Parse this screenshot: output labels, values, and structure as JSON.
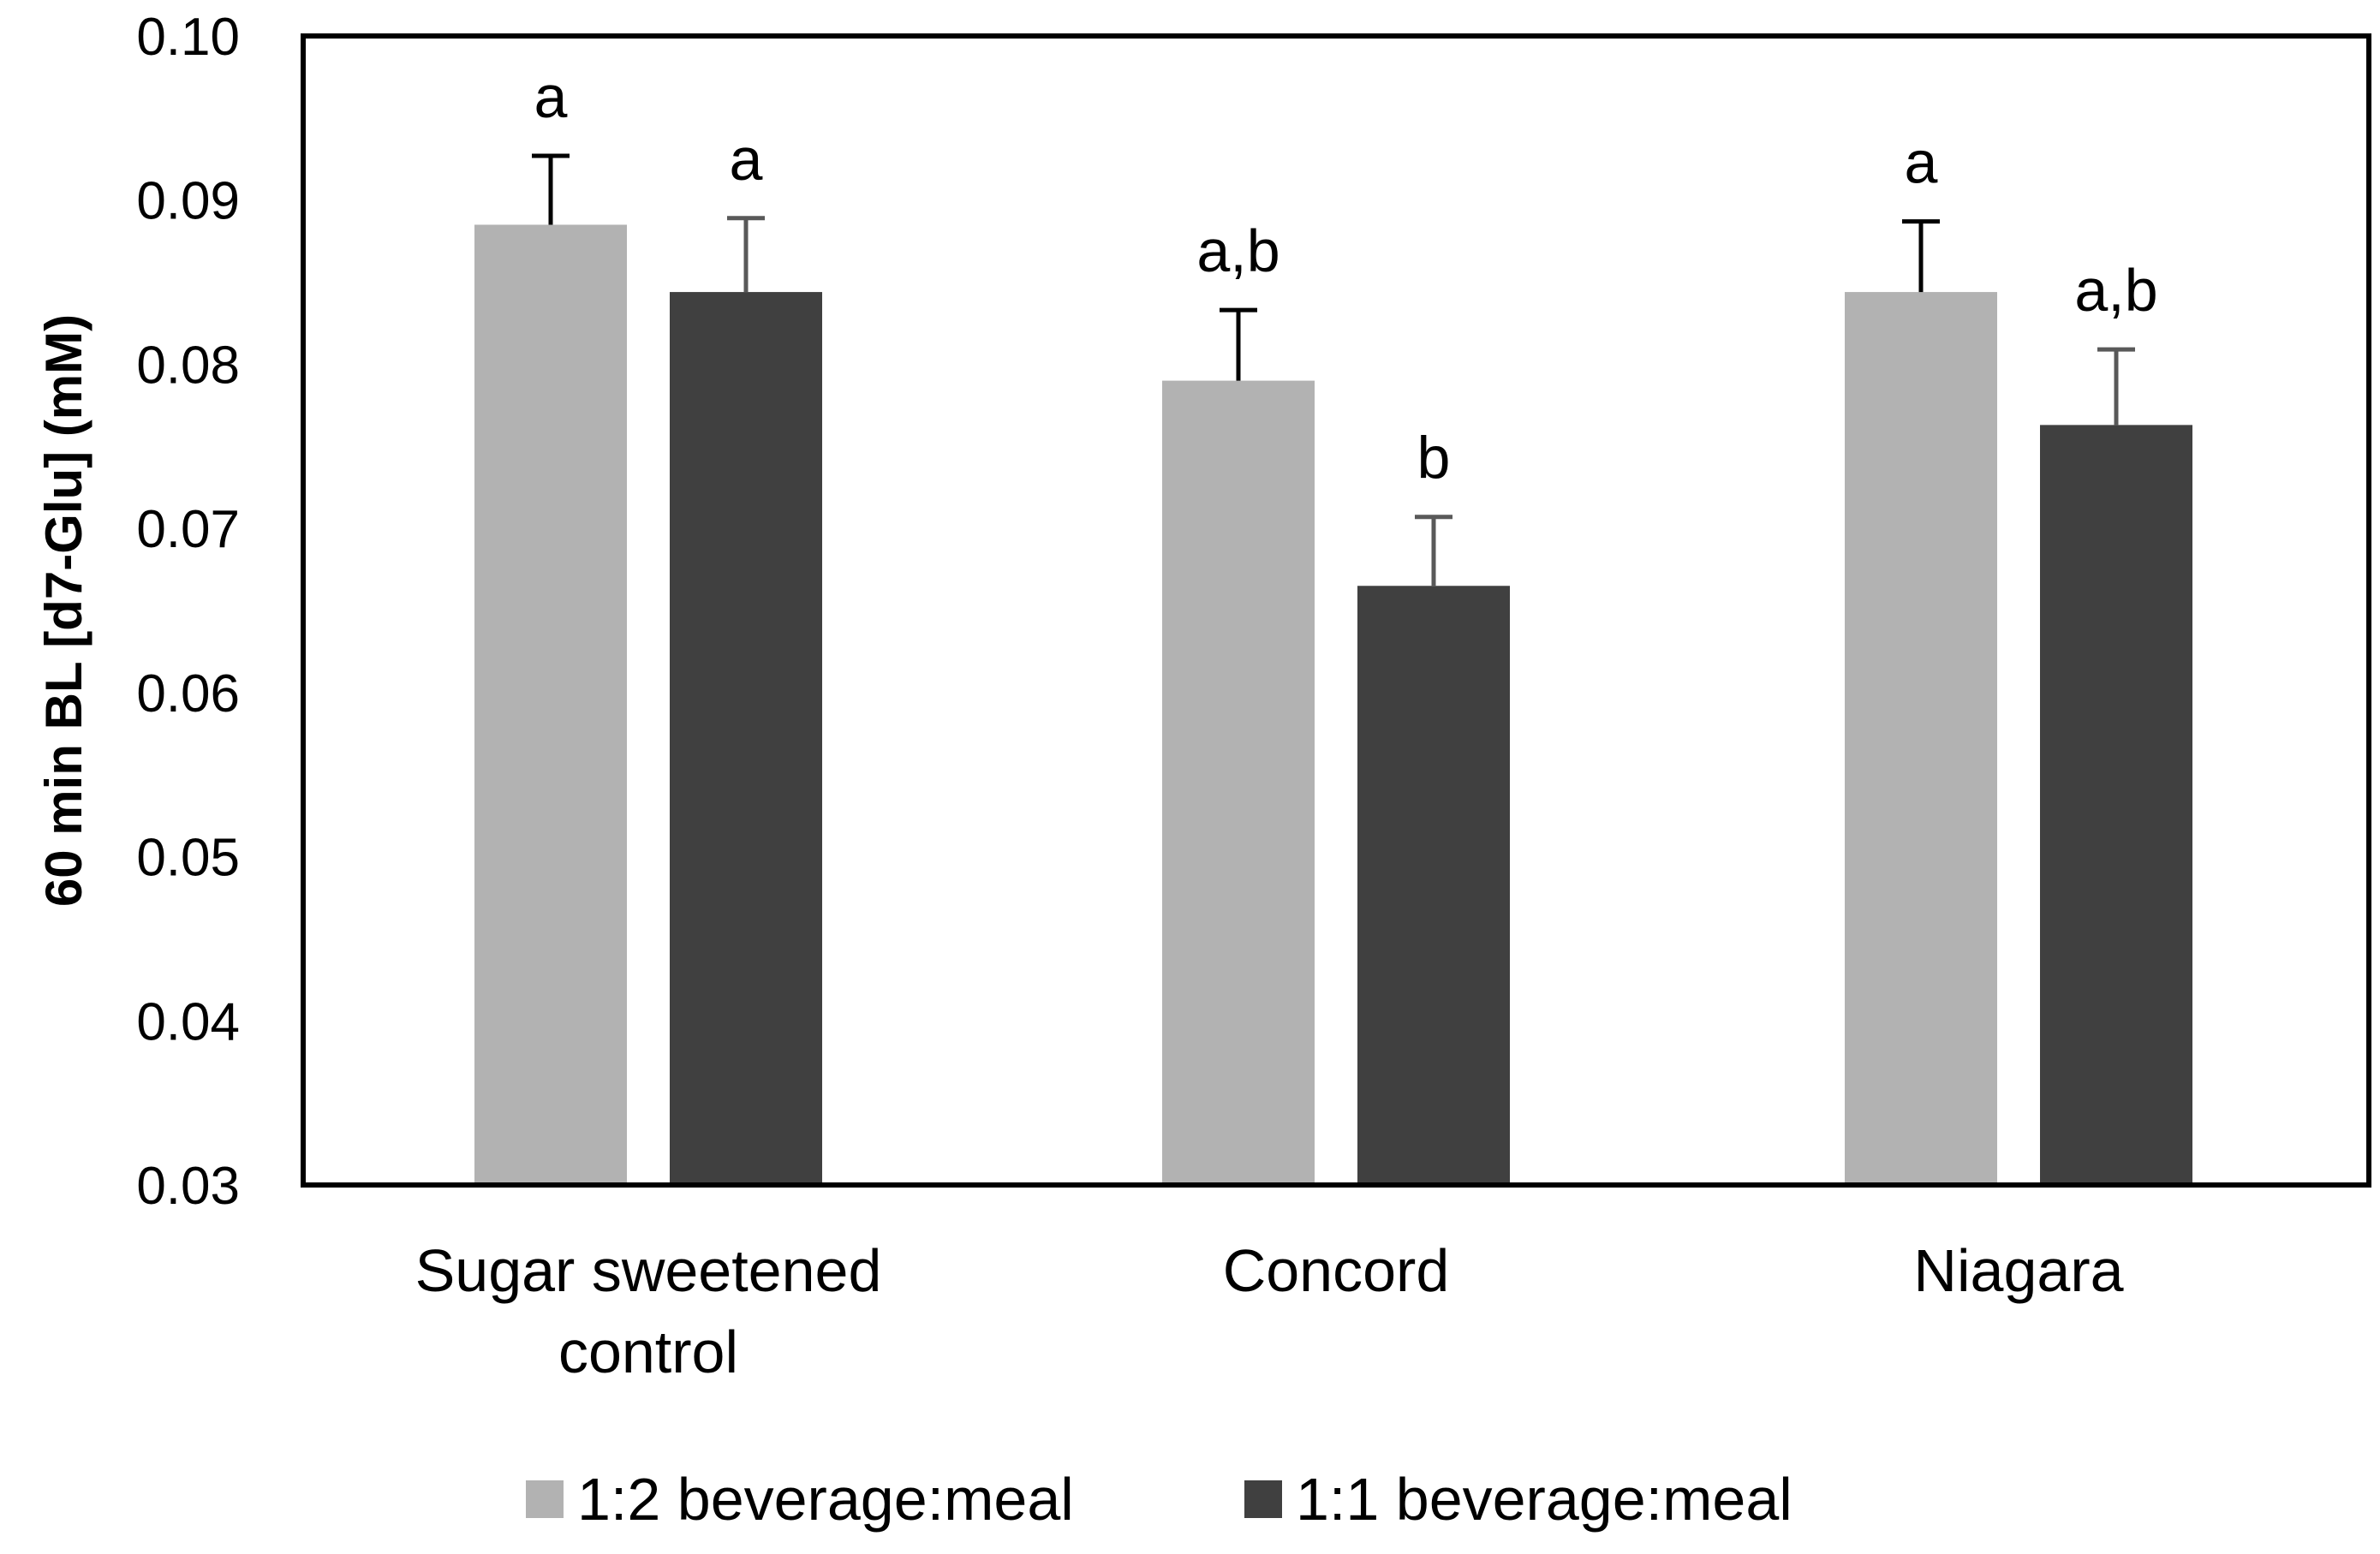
{
  "chart_data": {
    "type": "bar",
    "title": "",
    "xlabel": "",
    "ylabel": "60 min BL [d7-Glu] (mM)",
    "ylim": [
      0.03,
      0.1
    ],
    "yticks": [
      "0.03",
      "0.04",
      "0.05",
      "0.06",
      "0.07",
      "0.08",
      "0.09",
      "0.10"
    ],
    "categories": [
      [
        "Sugar sweetened",
        "control"
      ],
      [
        "Concord"
      ],
      [
        "Niagara"
      ]
    ],
    "series": [
      {
        "name": "1:2 beverage:meal",
        "color": "#b2b2b2",
        "error_color": "#000000",
        "values": [
          0.0885,
          0.079,
          0.0844
        ],
        "errors": [
          0.0042,
          0.0043,
          0.0043
        ],
        "labels": [
          "a",
          "a,b",
          "a"
        ]
      },
      {
        "name": "1:1 beverage:meal",
        "color": "#404040",
        "error_color": "#595959",
        "values": [
          0.0844,
          0.0665,
          0.0763
        ],
        "errors": [
          0.0045,
          0.0042,
          0.0046
        ],
        "labels": [
          "a",
          "b",
          "a,b"
        ]
      }
    ],
    "legend": "bottom",
    "grid": false
  }
}
